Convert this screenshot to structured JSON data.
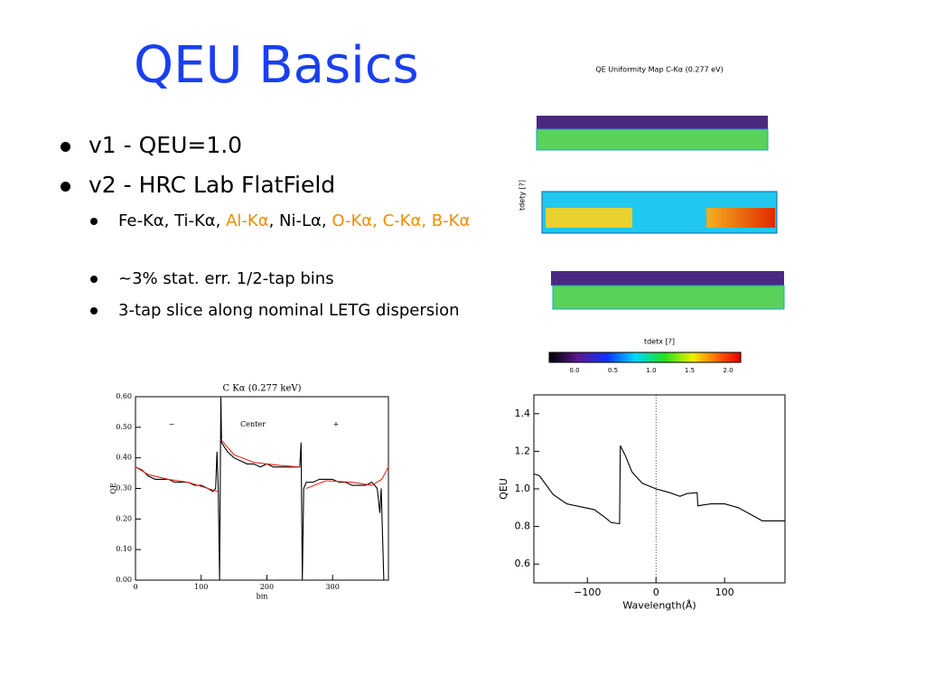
{
  "header": {
    "title": "QEU Basics"
  },
  "bullets": [
    {
      "level": 1,
      "segments": [
        {
          "text": "v1 - QEU=1.0",
          "color": "#000000"
        }
      ]
    },
    {
      "level": 1,
      "segments": [
        {
          "text": "v2 - HRC Lab FlatField",
          "color": "#000000"
        }
      ]
    },
    {
      "level": 2,
      "segments": [
        {
          "text": "Fe-Kα, Ti-Kα, ",
          "color": "#000000"
        },
        {
          "text": "Al-Kα",
          "color": "#f08c00"
        },
        {
          "text": ", Ni-Lα, ",
          "color": "#000000"
        },
        {
          "text": "O-Kα, C-Kα, B-Kα",
          "color": "#f08c00"
        }
      ]
    },
    {
      "level": 2,
      "segments": [
        {
          "text": "~3%  stat. err.  1/2-tap bins",
          "color": "#000000"
        }
      ]
    },
    {
      "level": 2,
      "segments": [
        {
          "text": "3-tap slice along nominal LETG dispersion",
          "color": "#000000"
        }
      ]
    }
  ],
  "map": {
    "title": "QE Uniformity Map      C-Kα (0.277 eV)",
    "ylabel": "tdety [?]",
    "xlabel": "tdetx [?]",
    "colorbar_labels": [
      "0.0",
      "0.5",
      "1.0",
      "1.5",
      "2.0"
    ]
  },
  "chart_data": [
    {
      "type": "line",
      "title": "C Kα (0.277 keV)",
      "xlabel": "bin",
      "ylabel": "QE",
      "annotations": [
        "−",
        "Center",
        "+"
      ],
      "xlim": [
        0,
        385
      ],
      "ylim": [
        0,
        0.6
      ],
      "xticks": [
        0,
        100,
        200,
        300
      ],
      "yticks": [
        {
          "value": 0,
          "label": "0.00"
        },
        {
          "value": 0.1,
          "label": "0.10"
        },
        {
          "value": 0.2,
          "label": "0.20"
        },
        {
          "value": 0.3,
          "label": "0.30"
        },
        {
          "value": 0.4,
          "label": "0.40"
        },
        {
          "value": 0.5,
          "label": "0.50"
        },
        {
          "value": 0.6,
          "label": "0.60"
        }
      ],
      "series": [
        {
          "color": "#000000",
          "x": [
            0,
            10,
            20,
            30,
            40,
            50,
            60,
            70,
            80,
            90,
            100,
            110,
            118,
            122,
            124,
            126,
            128,
            130,
            131,
            140,
            150,
            160,
            170,
            180,
            190,
            200,
            210,
            220,
            230,
            240,
            250,
            252,
            254,
            256,
            260,
            270,
            280,
            290,
            300,
            310,
            320,
            330,
            340,
            350,
            360,
            368,
            372,
            374,
            378
          ],
          "values": [
            0.37,
            0.36,
            0.34,
            0.33,
            0.33,
            0.33,
            0.32,
            0.32,
            0.32,
            0.31,
            0.31,
            0.3,
            0.29,
            0.3,
            0.42,
            0.3,
            0,
            0.6,
            0.45,
            0.42,
            0.4,
            0.39,
            0.38,
            0.38,
            0.37,
            0.38,
            0.37,
            0.37,
            0.37,
            0.37,
            0.37,
            0.45,
            0,
            0.3,
            0.32,
            0.32,
            0.33,
            0.33,
            0.33,
            0.32,
            0.32,
            0.31,
            0.31,
            0.31,
            0.32,
            0.3,
            0.22,
            0.3,
            0
          ]
        },
        {
          "color": "#e8281e",
          "x": [
            0,
            20,
            50,
            80,
            110,
            125,
            128,
            130,
            150,
            180,
            220,
            250,
            255,
            260,
            290,
            330,
            360,
            375,
            385
          ],
          "values": [
            0.37,
            0.345,
            0.33,
            0.32,
            0.3,
            0.29,
            null,
            0.46,
            0.41,
            0.385,
            0.375,
            0.37,
            null,
            0.3,
            0.325,
            0.32,
            0.31,
            0.33,
            0.37
          ]
        }
      ]
    },
    {
      "type": "line",
      "xlabel": "Wavelength(Å)",
      "ylabel": "QEU",
      "xlim": [
        -178,
        188
      ],
      "ylim": [
        0.5,
        1.5
      ],
      "vline": 0,
      "xticks": [
        {
          "value": -100,
          "label": "−100"
        },
        0,
        100
      ],
      "yticks": [
        0.6,
        0.8,
        {
          "value": 1,
          "label": "1.0"
        },
        1.2,
        1.4
      ],
      "series": [
        {
          "color": "#000000",
          "x": [
            -178,
            -170,
            -150,
            -130,
            -110,
            -90,
            -75,
            -65,
            -53,
            -52,
            -45,
            -35,
            -20,
            0,
            20,
            35,
            45,
            60,
            61,
            80,
            100,
            120,
            140,
            155,
            188
          ],
          "values": [
            1.08,
            1.07,
            0.97,
            0.92,
            0.905,
            0.89,
            0.85,
            0.82,
            0.815,
            1.23,
            1.18,
            1.09,
            1.03,
            1.0,
            0.98,
            0.96,
            0.975,
            0.98,
            0.91,
            0.92,
            0.92,
            0.9,
            0.86,
            0.83,
            0.83
          ]
        }
      ]
    }
  ]
}
